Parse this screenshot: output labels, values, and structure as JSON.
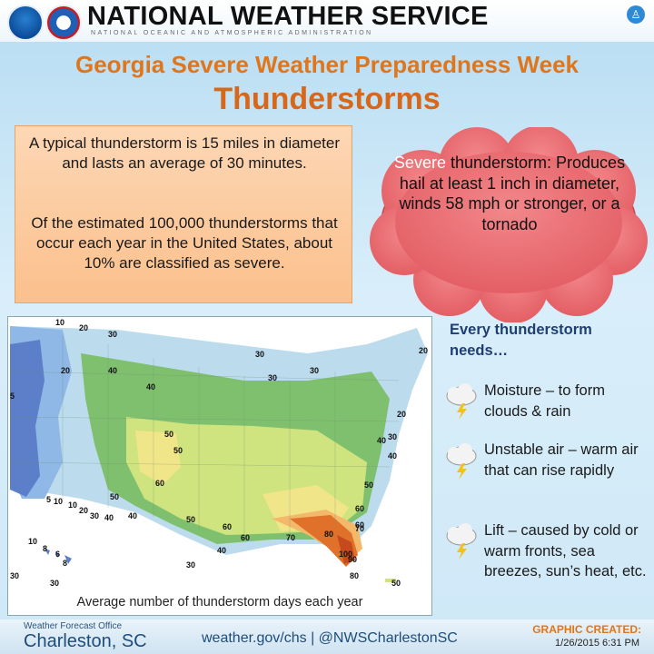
{
  "header": {
    "org_name": "NATIONAL WEATHER SERVICE",
    "org_subtitle": "NATIONAL OCEANIC AND ATMOSPHERIC ADMINISTRATION",
    "logos": [
      "noaa-logo",
      "nws-logo"
    ],
    "corner_icon": "person-icon"
  },
  "title": {
    "line1": "Georgia Severe Weather Preparedness Week",
    "line2": "Thunderstorms"
  },
  "info_box": {
    "paragraph1": "A typical thunderstorm is 15 miles in diameter and lasts an average of 30 minutes.",
    "paragraph2": "Of the estimated 100,000 thunderstorms that occur each year in the United States, about 10% are classified as severe."
  },
  "severe_cloud": {
    "highlight": "Severe",
    "text": " thunderstorm: Produces hail at least 1 inch in diameter, winds 58 mph or stronger, or a tornado"
  },
  "map": {
    "caption": "Average number of thunderstorm days each year",
    "contour_labels": [
      "10",
      "20",
      "30",
      "30",
      "5",
      "20",
      "40",
      "30",
      "30",
      "40",
      "20",
      "20",
      "30",
      "40",
      "50",
      "50",
      "60",
      "50",
      "40",
      "50",
      "60",
      "5",
      "10",
      "10",
      "20",
      "30",
      "40",
      "40",
      "50",
      "60",
      "60",
      "60",
      "70",
      "70",
      "80",
      "100",
      "90",
      "80",
      "40",
      "30",
      "50",
      "10",
      "8",
      "6",
      "8",
      "30",
      "30"
    ],
    "colors": {
      "water": "#ffffff",
      "band_low": "#5d7fc9",
      "band_20": "#8fb8e6",
      "band_30": "#bcdcee",
      "band_40": "#7fc06f",
      "band_50": "#cfe37f",
      "band_60": "#f1e58a",
      "band_70": "#f3b86a",
      "band_80": "#e0712b",
      "band_90": "#c64a1e"
    }
  },
  "needs": {
    "heading": "Every thunderstorm needs…",
    "items": [
      {
        "text": "Moisture – to form clouds & rain",
        "icon": "storm-cloud-icon"
      },
      {
        "text": "Unstable air – warm air that can rise rapidly",
        "icon": "storm-cloud-icon"
      },
      {
        "text": "Lift – caused by cold or warm fronts, sea breezes, sun’s heat, etc.",
        "icon": "storm-cloud-icon"
      }
    ]
  },
  "footer": {
    "office_label": "Weather Forecast Office",
    "office_name": "Charleston, SC",
    "web": "weather.gov/chs | @NWSCharlestonSC",
    "created_label": "GRAPHIC CREATED:",
    "created_date": "1/26/2015 6:31 PM"
  }
}
